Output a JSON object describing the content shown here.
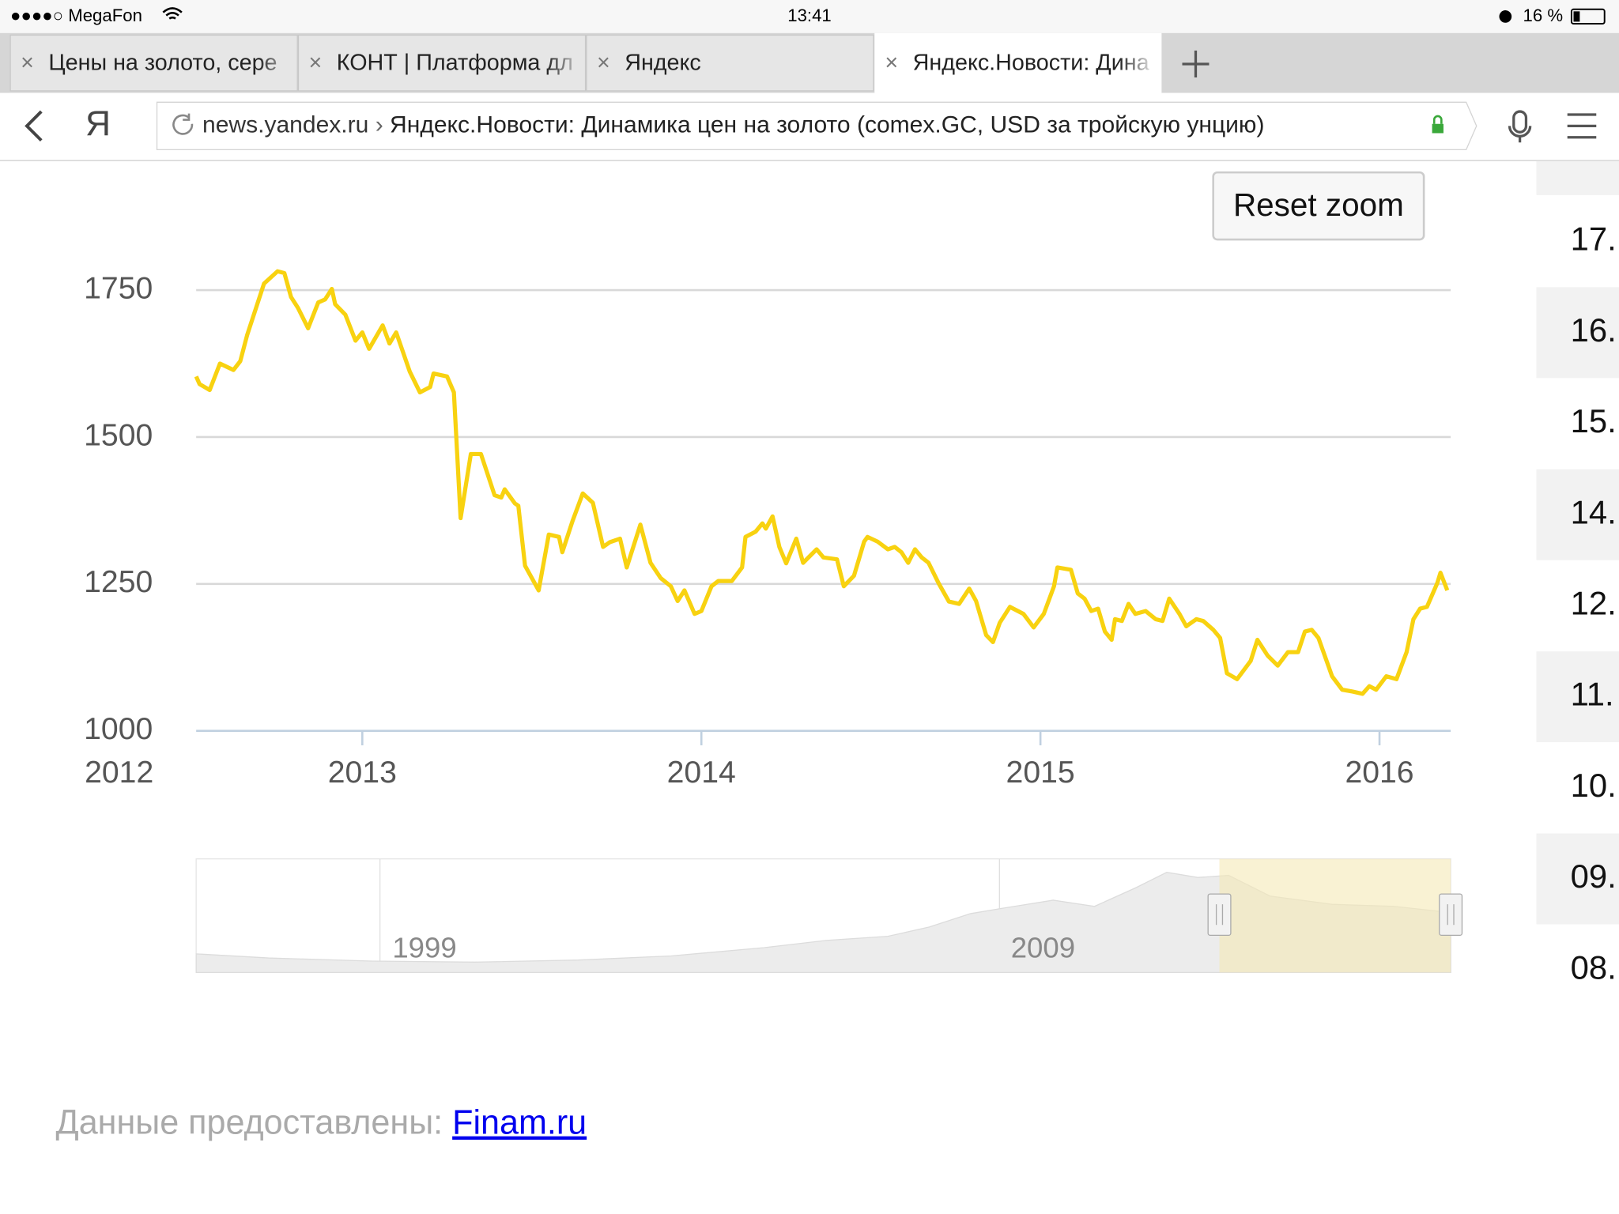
{
  "status_bar": {
    "carrier": "●●●●○ MegaFon",
    "time": "13:41",
    "battery": "16 %"
  },
  "tabs": [
    "Цены на золото, сере",
    "КОНТ | Платформа дл",
    "Яндекс",
    "Яндекс.Новости: Дина"
  ],
  "address_bar": {
    "logo": "Я",
    "domain": "news.yandex.ru",
    "separator": "›",
    "title": "Яндекс.Новости: Динамика цен на золото (comex.GC, USD за тройскую унцию)"
  },
  "reset_zoom": "Reset zoom",
  "chart": {
    "type": "line",
    "color": "#f8d210",
    "x_start_label": "2012",
    "x": [
      2012.51,
      2012.52,
      2012.55,
      2012.58,
      2012.62,
      2012.64,
      2012.66,
      2012.71,
      2012.75,
      2012.77,
      2012.79,
      2012.81,
      2012.84,
      2012.87,
      2012.89,
      2012.91,
      2012.92,
      2012.95,
      2012.98,
      2013.0,
      2013.02,
      2013.06,
      2013.08,
      2013.1,
      2013.14,
      2013.17,
      2013.2,
      2013.21,
      2013.25,
      2013.27,
      2013.29,
      2013.32,
      2013.35,
      2013.39,
      2013.41,
      2013.42,
      2013.45,
      2013.46,
      2013.48,
      2013.52,
      2013.55,
      2013.58,
      2013.59,
      2013.62,
      2013.65,
      2013.68,
      2013.71,
      2013.73,
      2013.76,
      2013.78,
      2013.82,
      2013.85,
      2013.88,
      2013.91,
      2013.93,
      2013.95,
      2013.98,
      2014.0,
      2014.03,
      2014.05,
      2014.09,
      2014.12,
      2014.13,
      2014.16,
      2014.18,
      2014.19,
      2014.21,
      2014.23,
      2014.25,
      2014.28,
      2014.3,
      2014.34,
      2014.36,
      2014.4,
      2014.42,
      2014.45,
      2014.48,
      2014.49,
      2014.52,
      2014.55,
      2014.57,
      2014.59,
      2014.61,
      2014.63,
      2014.65,
      2014.67,
      2014.7,
      2014.73,
      2014.76,
      2014.79,
      2014.81,
      2014.84,
      2014.86,
      2014.88,
      2014.91,
      2014.95,
      2014.98,
      2015.01,
      2015.04,
      2015.05,
      2015.09,
      2015.11,
      2015.13,
      2015.15,
      2015.17,
      2015.19,
      2015.21,
      2015.22,
      2015.24,
      2015.26,
      2015.28,
      2015.31,
      2015.34,
      2015.36,
      2015.38,
      2015.41,
      2015.43,
      2015.46,
      2015.48,
      2015.51,
      2015.53,
      2015.55,
      2015.58,
      2015.62,
      2015.64,
      2015.67,
      2015.7,
      2015.73,
      2015.76,
      2015.78,
      2015.8,
      2015.82,
      2015.86,
      2015.89,
      2015.92,
      2015.95,
      2015.97,
      2015.99,
      2016.02,
      2016.05,
      2016.08,
      2016.1,
      2016.12,
      2016.14,
      2016.17,
      2016.18,
      2016.2
    ],
    "values": [
      1603,
      1590,
      1580,
      1625,
      1614,
      1629,
      1673,
      1761,
      1782,
      1779,
      1738,
      1720,
      1685,
      1729,
      1734,
      1752,
      1726,
      1708,
      1664,
      1678,
      1650,
      1690,
      1659,
      1678,
      1611,
      1576,
      1585,
      1608,
      1603,
      1576,
      1362,
      1471,
      1471,
      1401,
      1397,
      1411,
      1387,
      1383,
      1281,
      1239,
      1334,
      1330,
      1304,
      1357,
      1404,
      1388,
      1313,
      1321,
      1327,
      1278,
      1351,
      1286,
      1260,
      1246,
      1221,
      1239,
      1199,
      1204,
      1246,
      1255,
      1255,
      1278,
      1330,
      1339,
      1353,
      1344,
      1365,
      1313,
      1285,
      1327,
      1286,
      1309,
      1295,
      1292,
      1246,
      1264,
      1322,
      1330,
      1322,
      1309,
      1313,
      1304,
      1286,
      1309,
      1295,
      1286,
      1251,
      1220,
      1216,
      1242,
      1221,
      1163,
      1151,
      1184,
      1211,
      1199,
      1176,
      1199,
      1246,
      1278,
      1274,
      1234,
      1225,
      1204,
      1208,
      1169,
      1155,
      1190,
      1187,
      1216,
      1199,
      1204,
      1190,
      1187,
      1225,
      1199,
      1178,
      1190,
      1187,
      1172,
      1158,
      1098,
      1088,
      1119,
      1155,
      1128,
      1111,
      1134,
      1134,
      1169,
      1172,
      1158,
      1093,
      1070,
      1067,
      1063,
      1076,
      1070,
      1093,
      1088,
      1134,
      1190,
      1208,
      1211,
      1251,
      1269,
      1239
    ],
    "xlim": [
      2012.51,
      2016.21
    ],
    "xticks": [
      2013,
      2014,
      2015,
      2016
    ],
    "ylim": [
      1000,
      1750
    ],
    "yticks": [
      1000,
      1250,
      1500,
      1750
    ],
    "grid": true
  },
  "navigator": {
    "labels": [
      "1999",
      "2009"
    ]
  },
  "side_column": [
    "17.",
    "16.",
    "15.",
    "14.",
    "12.",
    "11.",
    "10.",
    "09.",
    "08."
  ],
  "footer": {
    "text": "Данные предоставлены:",
    "link": "Finam.ru"
  }
}
